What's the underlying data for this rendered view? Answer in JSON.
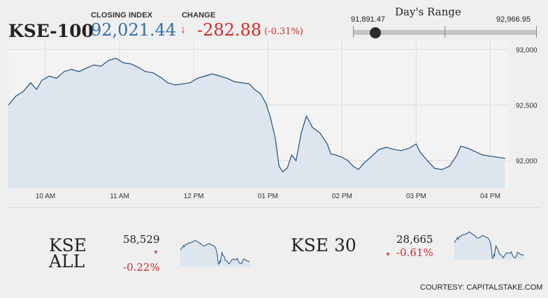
{
  "header": {
    "index_name": "KSE-100",
    "closing_label": "CLOSING INDEX",
    "closing_value": "92,021.44",
    "change_label": "CHANGE",
    "change_arrow": "↓",
    "change_value": "-282.88",
    "change_pct": "(-0.31%)",
    "colors": {
      "value_blue": "#2f6ea5",
      "negative_red": "#d02b2b"
    }
  },
  "days_range": {
    "title": "Day's Range",
    "low": "91,891.47",
    "high": "92,966.95",
    "current_fraction": 0.12
  },
  "chart_data": {
    "type": "area",
    "ylim": [
      91750,
      93080
    ],
    "y_ticks": [
      "93,000",
      "92,500",
      "92,000"
    ],
    "y_tick_values": [
      93000,
      92500,
      92000
    ],
    "x_ticks": [
      "10 AM",
      "11 AM",
      "12 PM",
      "01 PM",
      "02 PM",
      "03 PM",
      "04 PM"
    ],
    "x_tick_hours": [
      10,
      11,
      12,
      13,
      14,
      15,
      16
    ],
    "xlim": [
      9.5,
      16.25
    ],
    "grid": true,
    "line_color": "#1f4e79",
    "fill_color": "#dde6ee",
    "points": [
      [
        9.5,
        92500
      ],
      [
        9.6,
        92580
      ],
      [
        9.7,
        92620
      ],
      [
        9.8,
        92700
      ],
      [
        9.88,
        92640
      ],
      [
        9.95,
        92720
      ],
      [
        10.05,
        92760
      ],
      [
        10.15,
        92740
      ],
      [
        10.25,
        92800
      ],
      [
        10.35,
        92820
      ],
      [
        10.45,
        92800
      ],
      [
        10.55,
        92830
      ],
      [
        10.65,
        92860
      ],
      [
        10.75,
        92850
      ],
      [
        10.85,
        92900
      ],
      [
        10.95,
        92920
      ],
      [
        11.05,
        92880
      ],
      [
        11.15,
        92870
      ],
      [
        11.25,
        92840
      ],
      [
        11.35,
        92800
      ],
      [
        11.45,
        92790
      ],
      [
        11.55,
        92750
      ],
      [
        11.65,
        92700
      ],
      [
        11.75,
        92680
      ],
      [
        11.85,
        92690
      ],
      [
        11.95,
        92700
      ],
      [
        12.05,
        92740
      ],
      [
        12.15,
        92760
      ],
      [
        12.25,
        92780
      ],
      [
        12.35,
        92760
      ],
      [
        12.45,
        92740
      ],
      [
        12.55,
        92710
      ],
      [
        12.65,
        92700
      ],
      [
        12.75,
        92690
      ],
      [
        12.82,
        92640
      ],
      [
        12.9,
        92600
      ],
      [
        12.97,
        92520
      ],
      [
        13.03,
        92400
      ],
      [
        13.1,
        92200
      ],
      [
        13.15,
        91950
      ],
      [
        13.2,
        91900
      ],
      [
        13.26,
        91930
      ],
      [
        13.32,
        92050
      ],
      [
        13.38,
        92000
      ],
      [
        13.45,
        92250
      ],
      [
        13.52,
        92400
      ],
      [
        13.6,
        92300
      ],
      [
        13.7,
        92250
      ],
      [
        13.8,
        92150
      ],
      [
        13.85,
        92060
      ],
      [
        13.92,
        92050
      ],
      [
        14.0,
        92030
      ],
      [
        14.08,
        92000
      ],
      [
        14.15,
        91950
      ],
      [
        14.22,
        91920
      ],
      [
        14.3,
        91980
      ],
      [
        14.4,
        92040
      ],
      [
        14.5,
        92100
      ],
      [
        14.6,
        92120
      ],
      [
        14.7,
        92100
      ],
      [
        14.8,
        92090
      ],
      [
        14.9,
        92110
      ],
      [
        15.0,
        92150
      ],
      [
        15.05,
        92080
      ],
      [
        15.15,
        92000
      ],
      [
        15.25,
        91930
      ],
      [
        15.35,
        91920
      ],
      [
        15.45,
        91950
      ],
      [
        15.55,
        92050
      ],
      [
        15.6,
        92130
      ],
      [
        15.7,
        92110
      ],
      [
        15.8,
        92080
      ],
      [
        15.9,
        92050
      ],
      [
        16.2,
        92021
      ]
    ]
  },
  "sub_indices": [
    {
      "name_line1": "KSE",
      "name_line2": "ALL",
      "value": "58,529",
      "pct": "-0.22%"
    },
    {
      "name_line1": "KSE 30",
      "name_line2": "",
      "value": "28,665",
      "pct": "-0.61%"
    }
  ],
  "courtesy": "COURTESY: CAPITALSTAKE.COM"
}
